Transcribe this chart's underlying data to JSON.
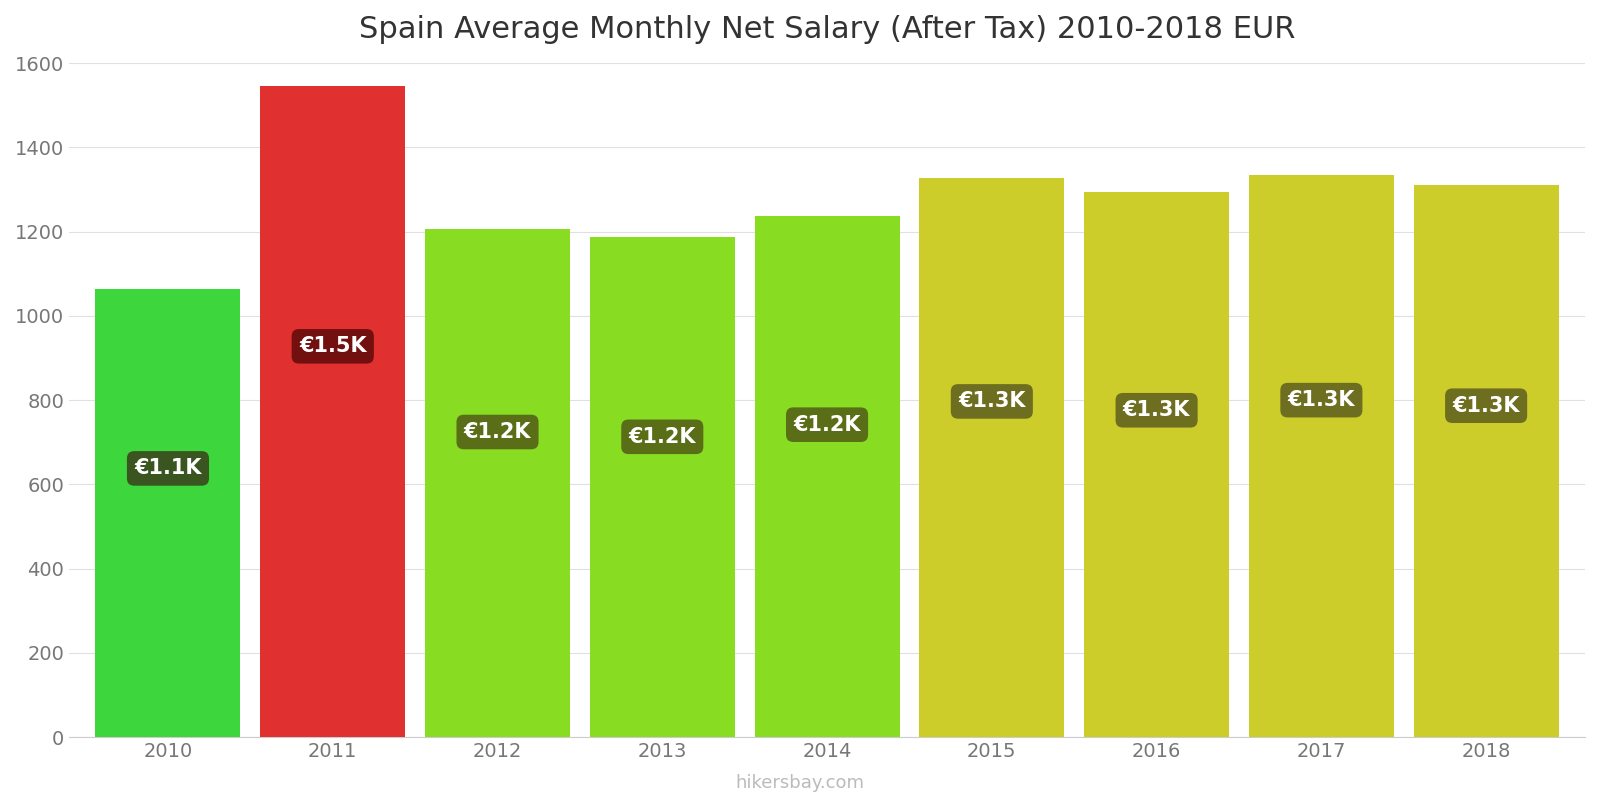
{
  "years": [
    2010,
    2011,
    2012,
    2013,
    2014,
    2015,
    2016,
    2017,
    2018
  ],
  "values": [
    1063,
    1546,
    1207,
    1188,
    1236,
    1328,
    1293,
    1333,
    1311
  ],
  "labels": [
    "€1.1K",
    "€1.5K",
    "€1.2K",
    "€1.2K",
    "€1.2K",
    "€1.3K",
    "€1.3K",
    "€1.3K",
    "€1.3K"
  ],
  "bar_colors": [
    "#3dd63d",
    "#e03030",
    "#88dd22",
    "#88dd22",
    "#88dd22",
    "#cccc2a",
    "#cccc2a",
    "#cccc2a",
    "#cccc2a"
  ],
  "label_bg_colors": [
    "#3a5520",
    "#721010",
    "#5a6e18",
    "#5a6e18",
    "#5a6e18",
    "#6e6e20",
    "#6e6e20",
    "#6e6e20",
    "#6e6e20"
  ],
  "title": "Spain Average Monthly Net Salary (After Tax) 2010-2018 EUR",
  "ylim": [
    0,
    1600
  ],
  "yticks": [
    0,
    200,
    400,
    600,
    800,
    1000,
    1200,
    1400,
    1600
  ],
  "watermark": "hikersbay.com",
  "title_fontsize": 22,
  "label_fontsize": 15,
  "bar_width": 0.88
}
